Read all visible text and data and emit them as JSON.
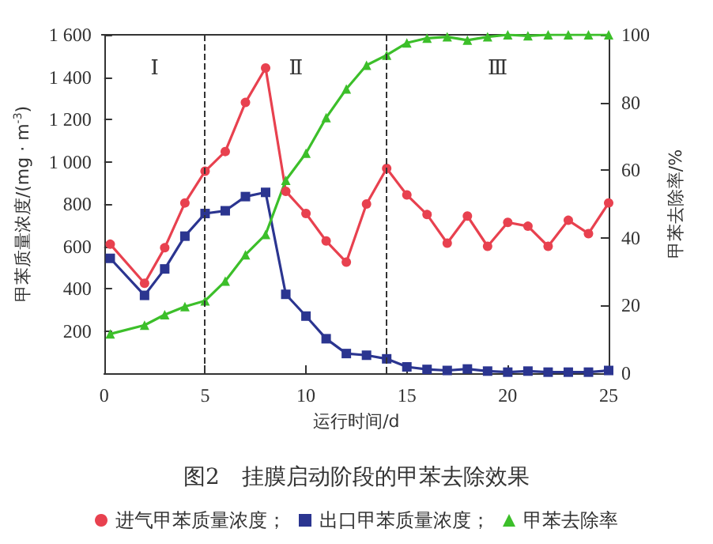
{
  "chart_data": {
    "type": "line",
    "title": "图2　挂膜启动阶段的甲苯去除效果",
    "xlabel": "运行时间/d",
    "ylabel": "甲苯质量浓度/(mg · m$^{-3}$)",
    "y2label": "甲苯去除率/%",
    "x": [
      0.3,
      2,
      3,
      4,
      5,
      6,
      7,
      8,
      9,
      10,
      11,
      12,
      13,
      14,
      15,
      16,
      17,
      18,
      19,
      20,
      21,
      22,
      23,
      24,
      25
    ],
    "xlim": [
      0,
      25
    ],
    "xticks": [
      0,
      5,
      10,
      15,
      20,
      25
    ],
    "ylim": [
      0,
      1600
    ],
    "yticks": [
      200,
      400,
      600,
      800,
      {
        "value": 1000,
        "label": "1 000"
      },
      {
        "value": 1200,
        "label": "1 200"
      },
      {
        "value": 1400,
        "label": "1 400"
      },
      {
        "value": 1600,
        "label": "1 600"
      }
    ],
    "y2lim": [
      0,
      100
    ],
    "y2ticks": [
      0,
      20,
      40,
      60,
      80,
      100
    ],
    "series": [
      {
        "name": "进气甲苯质量浓度；",
        "color": "#e8414f",
        "marker": "circle",
        "values": [
          610,
          425,
          593,
          805,
          955,
          1048,
          1280,
          1443,
          860,
          755,
          625,
          525,
          800,
          968,
          843,
          750,
          615,
          743,
          600,
          713,
          695,
          600,
          723,
          660,
          805
        ]
      },
      {
        "name": "出口甲苯质量浓度；",
        "color": "#2b3590",
        "marker": "square",
        "values": [
          543,
          368,
          493,
          648,
          755,
          768,
          835,
          855,
          373,
          270,
          163,
          93,
          85,
          68,
          30,
          18,
          13,
          20,
          10,
          5,
          10,
          5,
          5,
          5,
          13
        ]
      },
      {
        "name": "甲苯去除率",
        "color": "#3cbf2a",
        "marker": "triangle",
        "axis": "y2",
        "values": [
          11.6,
          14.2,
          17.3,
          19.7,
          21.4,
          27.2,
          35,
          41,
          57,
          65,
          75.5,
          84,
          91,
          94,
          97.6,
          99,
          99.4,
          98.4,
          99.4,
          100,
          99.7,
          100,
          100,
          100,
          100
        ]
      }
    ],
    "ref_lines": [
      {
        "axis": "x",
        "value": 5,
        "line_style": "dashed",
        "color": "#333333"
      },
      {
        "axis": "x",
        "value": 14,
        "line_style": "dashed",
        "color": "#333333"
      }
    ],
    "annotations": [
      "Ⅰ",
      "Ⅱ",
      "Ⅲ"
    ],
    "legend": "bottom",
    "grid": false
  }
}
